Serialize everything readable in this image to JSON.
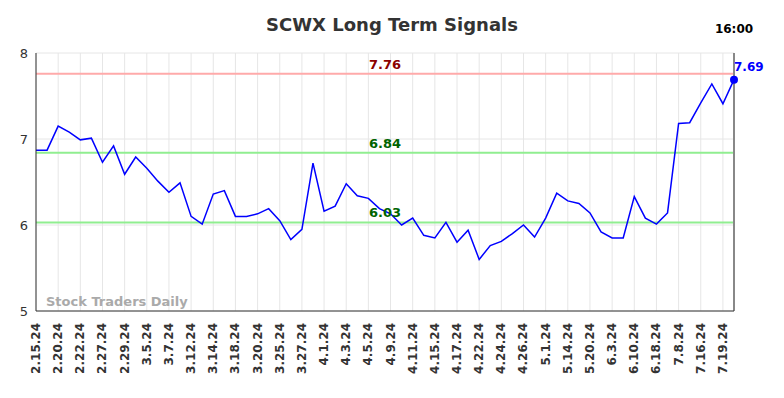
{
  "chart_data": {
    "type": "line",
    "title": "SCWX Long Term Signals",
    "categories": [
      "2.15.24",
      null,
      "2.20.24",
      null,
      "2.22.24",
      null,
      "2.27.24",
      null,
      "2.29.24",
      null,
      "3.5.24",
      null,
      "3.7.24",
      null,
      "3.12.24",
      null,
      "3.14.24",
      null,
      "3.18.24",
      null,
      "3.20.24",
      null,
      "3.25.24",
      null,
      "3.27.24",
      null,
      "4.1.24",
      null,
      "4.3.24",
      null,
      "4.5.24",
      null,
      "4.9.24",
      null,
      "4.11.24",
      null,
      "4.15.24",
      null,
      "4.17.24",
      null,
      "4.22.24",
      null,
      "4.24.24",
      null,
      "4.26.24",
      null,
      "5.1.24",
      null,
      "5.14.24",
      null,
      "5.20.24",
      null,
      "6.3.24",
      null,
      "6.10.24",
      null,
      "6.18.24",
      null,
      "7.8.24",
      null,
      "7.16.24",
      null,
      "7.19.24",
      null
    ],
    "values": [
      6.87,
      6.87,
      7.15,
      7.08,
      6.99,
      7.01,
      6.73,
      6.92,
      6.59,
      6.79,
      6.66,
      6.51,
      6.38,
      6.49,
      6.1,
      6.01,
      6.36,
      6.4,
      6.1,
      6.1,
      6.13,
      6.19,
      6.05,
      5.83,
      5.95,
      6.72,
      6.16,
      6.22,
      6.48,
      6.34,
      6.31,
      6.19,
      6.13,
      6.0,
      6.08,
      5.88,
      5.85,
      6.03,
      5.8,
      5.94,
      5.6,
      5.76,
      5.81,
      5.9,
      6.0,
      5.86,
      6.08,
      6.37,
      6.28,
      6.25,
      6.14,
      5.92,
      5.85,
      5.85,
      6.33,
      6.08,
      6.01,
      6.14,
      7.18,
      7.19,
      7.42,
      7.64,
      7.41,
      7.69
    ],
    "color": "#0000ff",
    "ylim": [
      5,
      8
    ],
    "yticks": [
      5,
      6,
      7,
      8
    ],
    "grid": true,
    "levels": [
      {
        "value": 7.76,
        "color": "#ffaaaa",
        "label_color": "#8b0000"
      },
      {
        "value": 6.84,
        "color": "#90ee90",
        "label_color": "#006400"
      },
      {
        "value": 6.03,
        "color": "#90ee90",
        "label_color": "#006400"
      }
    ],
    "annotations": {
      "time": "16:00",
      "watermark": "Stock Traders Daily"
    }
  }
}
